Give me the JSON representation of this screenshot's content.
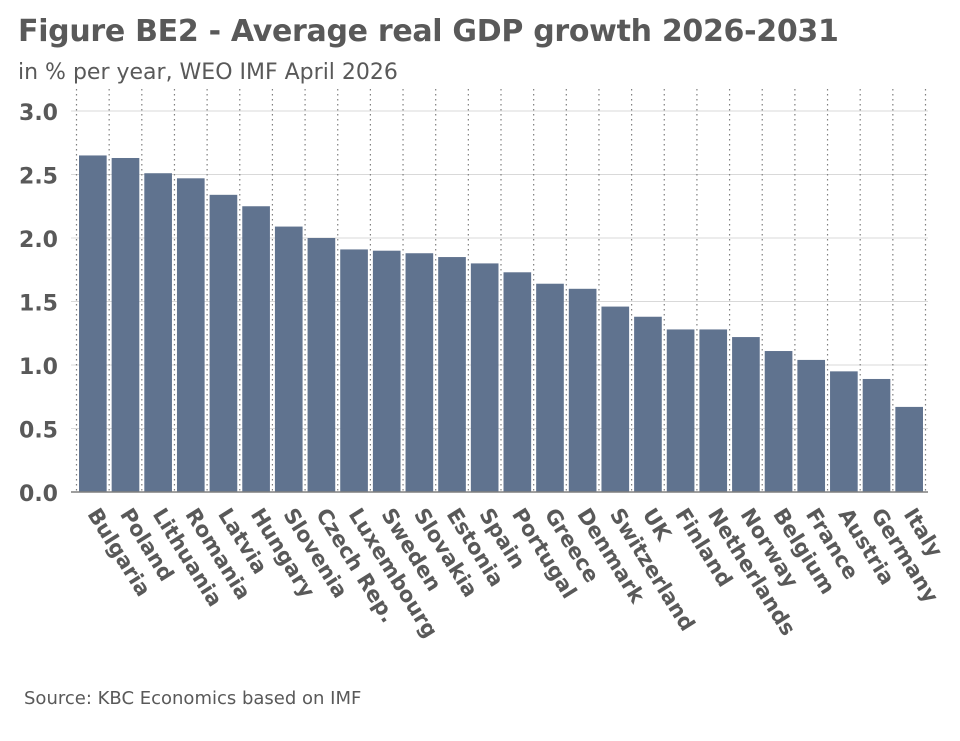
{
  "chart_data": {
    "type": "bar",
    "title": "Figure BE2 - Average real GDP growth 2026-2031",
    "subtitle": "in % per year, WEO IMF April 2026",
    "source": "Source: KBC Economics based on IMF",
    "categories": [
      "Bulgaria",
      "Poland",
      "Lithuania",
      "Romania",
      "Latvia",
      "Hungary",
      "Slovenia",
      "Czech Rep.",
      "Luxembourg",
      "Sweden",
      "Slovakia",
      "Estonia",
      "Spain",
      "Portugal",
      "Greece",
      "Denmark",
      "Switzerland",
      "UK",
      "Finland",
      "Netherlands",
      "Norway",
      "Belgium",
      "France",
      "Austria",
      "Germany",
      "Italy"
    ],
    "values": [
      2.65,
      2.63,
      2.51,
      2.47,
      2.34,
      2.25,
      2.09,
      2.0,
      1.91,
      1.9,
      1.88,
      1.85,
      1.8,
      1.73,
      1.64,
      1.6,
      1.46,
      1.38,
      1.28,
      1.28,
      1.22,
      1.11,
      1.04,
      0.95,
      0.89,
      0.67
    ],
    "ylim": [
      0,
      3.0
    ],
    "yticks": [
      "0.0",
      "0.5",
      "1.0",
      "1.5",
      "2.0",
      "2.5",
      "3.0"
    ],
    "grid": true,
    "bar_color": "#60738f",
    "text_color": "#595959"
  }
}
